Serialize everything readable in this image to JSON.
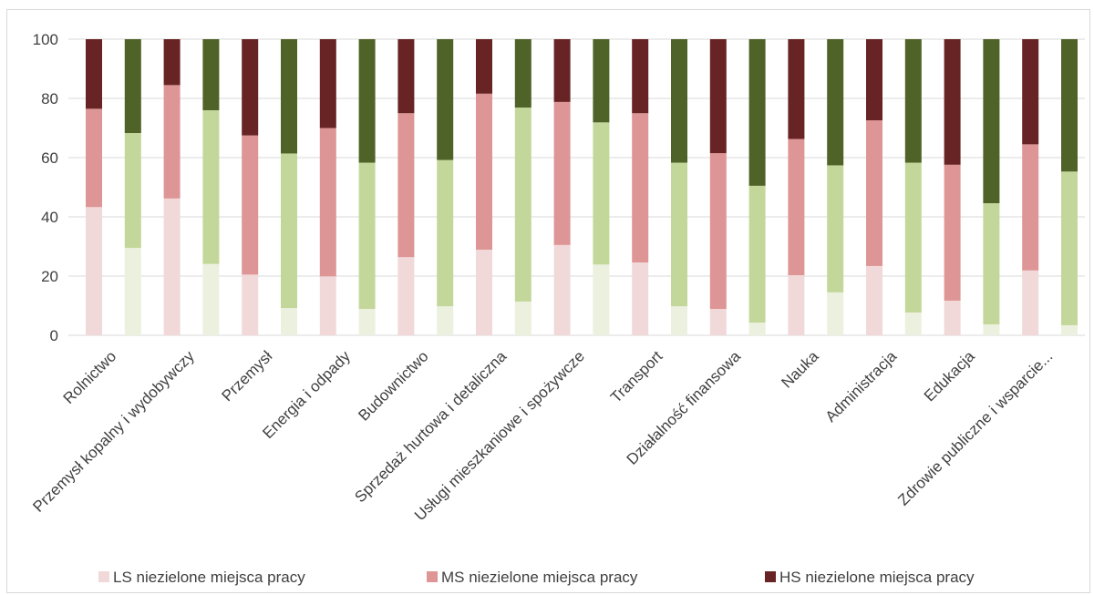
{
  "chart_data": {
    "type": "bar",
    "stacked": true,
    "categories": [
      "Rolnictwo",
      "Przemysł kopalny i wydobywczy",
      "Przemysł",
      "Energia i odpady",
      "Budownictwo",
      "Sprzedaż hurtowa i detaliczna",
      "Usługi mieszkaniowe i spożywcze",
      "Transport",
      "Działalność finansowa",
      "Nauka",
      "Administracja",
      "Edukacja",
      "Zdrowie publiczne i wsparcie..."
    ],
    "ylim": [
      0,
      100
    ],
    "yticks": [
      "0",
      "20",
      "40",
      "60",
      "80",
      "100"
    ],
    "grid": true,
    "legend_position": "bottom",
    "legend": [
      {
        "label": "LS niezielone miejsca pracy",
        "color": "#f2d9d9"
      },
      {
        "label": "MS niezielone miejsca pracy",
        "color": "#de9595"
      },
      {
        "label": "HS niezielone miejsca pracy",
        "color": "#682424"
      }
    ],
    "bars": [
      {
        "group": 0,
        "kind": "nongreen",
        "segments": [
          43.3,
          33.2,
          23.5
        ]
      },
      {
        "group": 0,
        "kind": "green",
        "segments": [
          29.5,
          38.8,
          31.7
        ]
      },
      {
        "group": 1,
        "kind": "nongreen",
        "segments": [
          46.2,
          38.3,
          15.5
        ]
      },
      {
        "group": 1,
        "kind": "green",
        "segments": [
          24.1,
          51.9,
          24.0
        ]
      },
      {
        "group": 2,
        "kind": "nongreen",
        "segments": [
          20.5,
          47.0,
          32.5
        ]
      },
      {
        "group": 2,
        "kind": "green",
        "segments": [
          9.2,
          52.2,
          38.6
        ]
      },
      {
        "group": 3,
        "kind": "nongreen",
        "segments": [
          19.9,
          50.1,
          30.0
        ]
      },
      {
        "group": 3,
        "kind": "green",
        "segments": [
          8.9,
          49.4,
          41.7
        ]
      },
      {
        "group": 4,
        "kind": "nongreen",
        "segments": [
          26.4,
          48.6,
          25.0
        ]
      },
      {
        "group": 4,
        "kind": "green",
        "segments": [
          9.8,
          49.4,
          40.8
        ]
      },
      {
        "group": 5,
        "kind": "nongreen",
        "segments": [
          28.9,
          52.7,
          18.4
        ]
      },
      {
        "group": 5,
        "kind": "green",
        "segments": [
          11.4,
          65.5,
          23.1
        ]
      },
      {
        "group": 6,
        "kind": "nongreen",
        "segments": [
          30.5,
          48.3,
          21.2
        ]
      },
      {
        "group": 6,
        "kind": "green",
        "segments": [
          23.9,
          48.0,
          28.1
        ]
      },
      {
        "group": 7,
        "kind": "nongreen",
        "segments": [
          24.6,
          50.4,
          25.0
        ]
      },
      {
        "group": 7,
        "kind": "green",
        "segments": [
          9.8,
          48.5,
          41.7
        ]
      },
      {
        "group": 8,
        "kind": "nongreen",
        "segments": [
          8.9,
          52.6,
          38.5
        ]
      },
      {
        "group": 8,
        "kind": "green",
        "segments": [
          4.3,
          46.2,
          49.5
        ]
      },
      {
        "group": 9,
        "kind": "nongreen",
        "segments": [
          20.3,
          46.0,
          33.7
        ]
      },
      {
        "group": 9,
        "kind": "green",
        "segments": [
          14.5,
          42.9,
          42.6
        ]
      },
      {
        "group": 10,
        "kind": "nongreen",
        "segments": [
          23.4,
          49.2,
          27.4
        ]
      },
      {
        "group": 10,
        "kind": "green",
        "segments": [
          7.7,
          50.6,
          41.7
        ]
      },
      {
        "group": 11,
        "kind": "nongreen",
        "segments": [
          11.7,
          45.9,
          42.4
        ]
      },
      {
        "group": 11,
        "kind": "green",
        "segments": [
          3.7,
          40.9,
          55.4
        ]
      },
      {
        "group": 12,
        "kind": "nongreen",
        "segments": [
          21.9,
          42.6,
          35.5
        ]
      },
      {
        "group": 12,
        "kind": "green",
        "segments": [
          3.4,
          51.9,
          44.7
        ]
      }
    ],
    "green_colors": [
      "#ebf1de",
      "#c4d79b",
      "#4f6228"
    ],
    "nongreen_colors": [
      "#f2d9d9",
      "#de9595",
      "#682424"
    ]
  }
}
